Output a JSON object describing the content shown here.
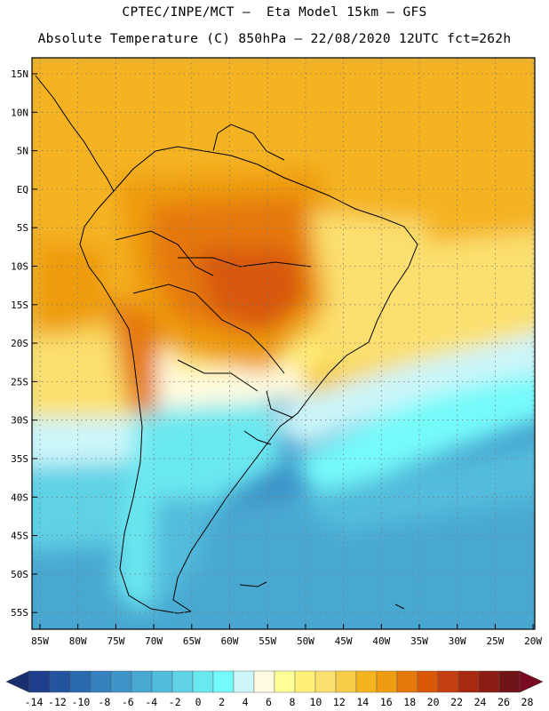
{
  "titles": {
    "line1": "CPTEC/INPE/MCT –  Eta Model 15km – GFS",
    "line2": "Absolute Temperature (C) 850hPa – 22/08/2020 12UTC fct=262h"
  },
  "map": {
    "lat_labels": [
      "15N",
      "10N",
      "5N",
      "EQ",
      "5S",
      "10S",
      "15S",
      "20S",
      "25S",
      "30S",
      "35S",
      "40S",
      "45S",
      "50S",
      "55S"
    ],
    "lon_labels": [
      "85W",
      "80W",
      "75W",
      "70W",
      "65W",
      "60W",
      "55W",
      "50W",
      "45W",
      "40W",
      "35W",
      "30W",
      "25W",
      "20W"
    ]
  },
  "colorbar": {
    "labels": [
      "-14",
      "-12",
      "-10",
      "-8",
      "-6",
      "-4",
      "-2",
      "0",
      "2",
      "4",
      "6",
      "8",
      "10",
      "12",
      "14",
      "16",
      "18",
      "20",
      "22",
      "24",
      "26",
      "28"
    ],
    "colors": [
      "#1d3f8c",
      "#23559e",
      "#2a6bb0",
      "#3581be",
      "#3f95c8",
      "#48a8d2",
      "#52bcdc",
      "#5fd2e6",
      "#6ae8f0",
      "#74fafa",
      "#ccf6fa",
      "#fffbe0",
      "#ffff9a",
      "#fff07a",
      "#fbe070",
      "#f7cc48",
      "#f5b320",
      "#ee9c10",
      "#e5780a",
      "#d85808",
      "#c44010",
      "#a82a10",
      "#8a1c14",
      "#701418"
    ],
    "left_arrow_color": "#1a2f6e",
    "right_arrow_color": "#7a0a22"
  }
}
